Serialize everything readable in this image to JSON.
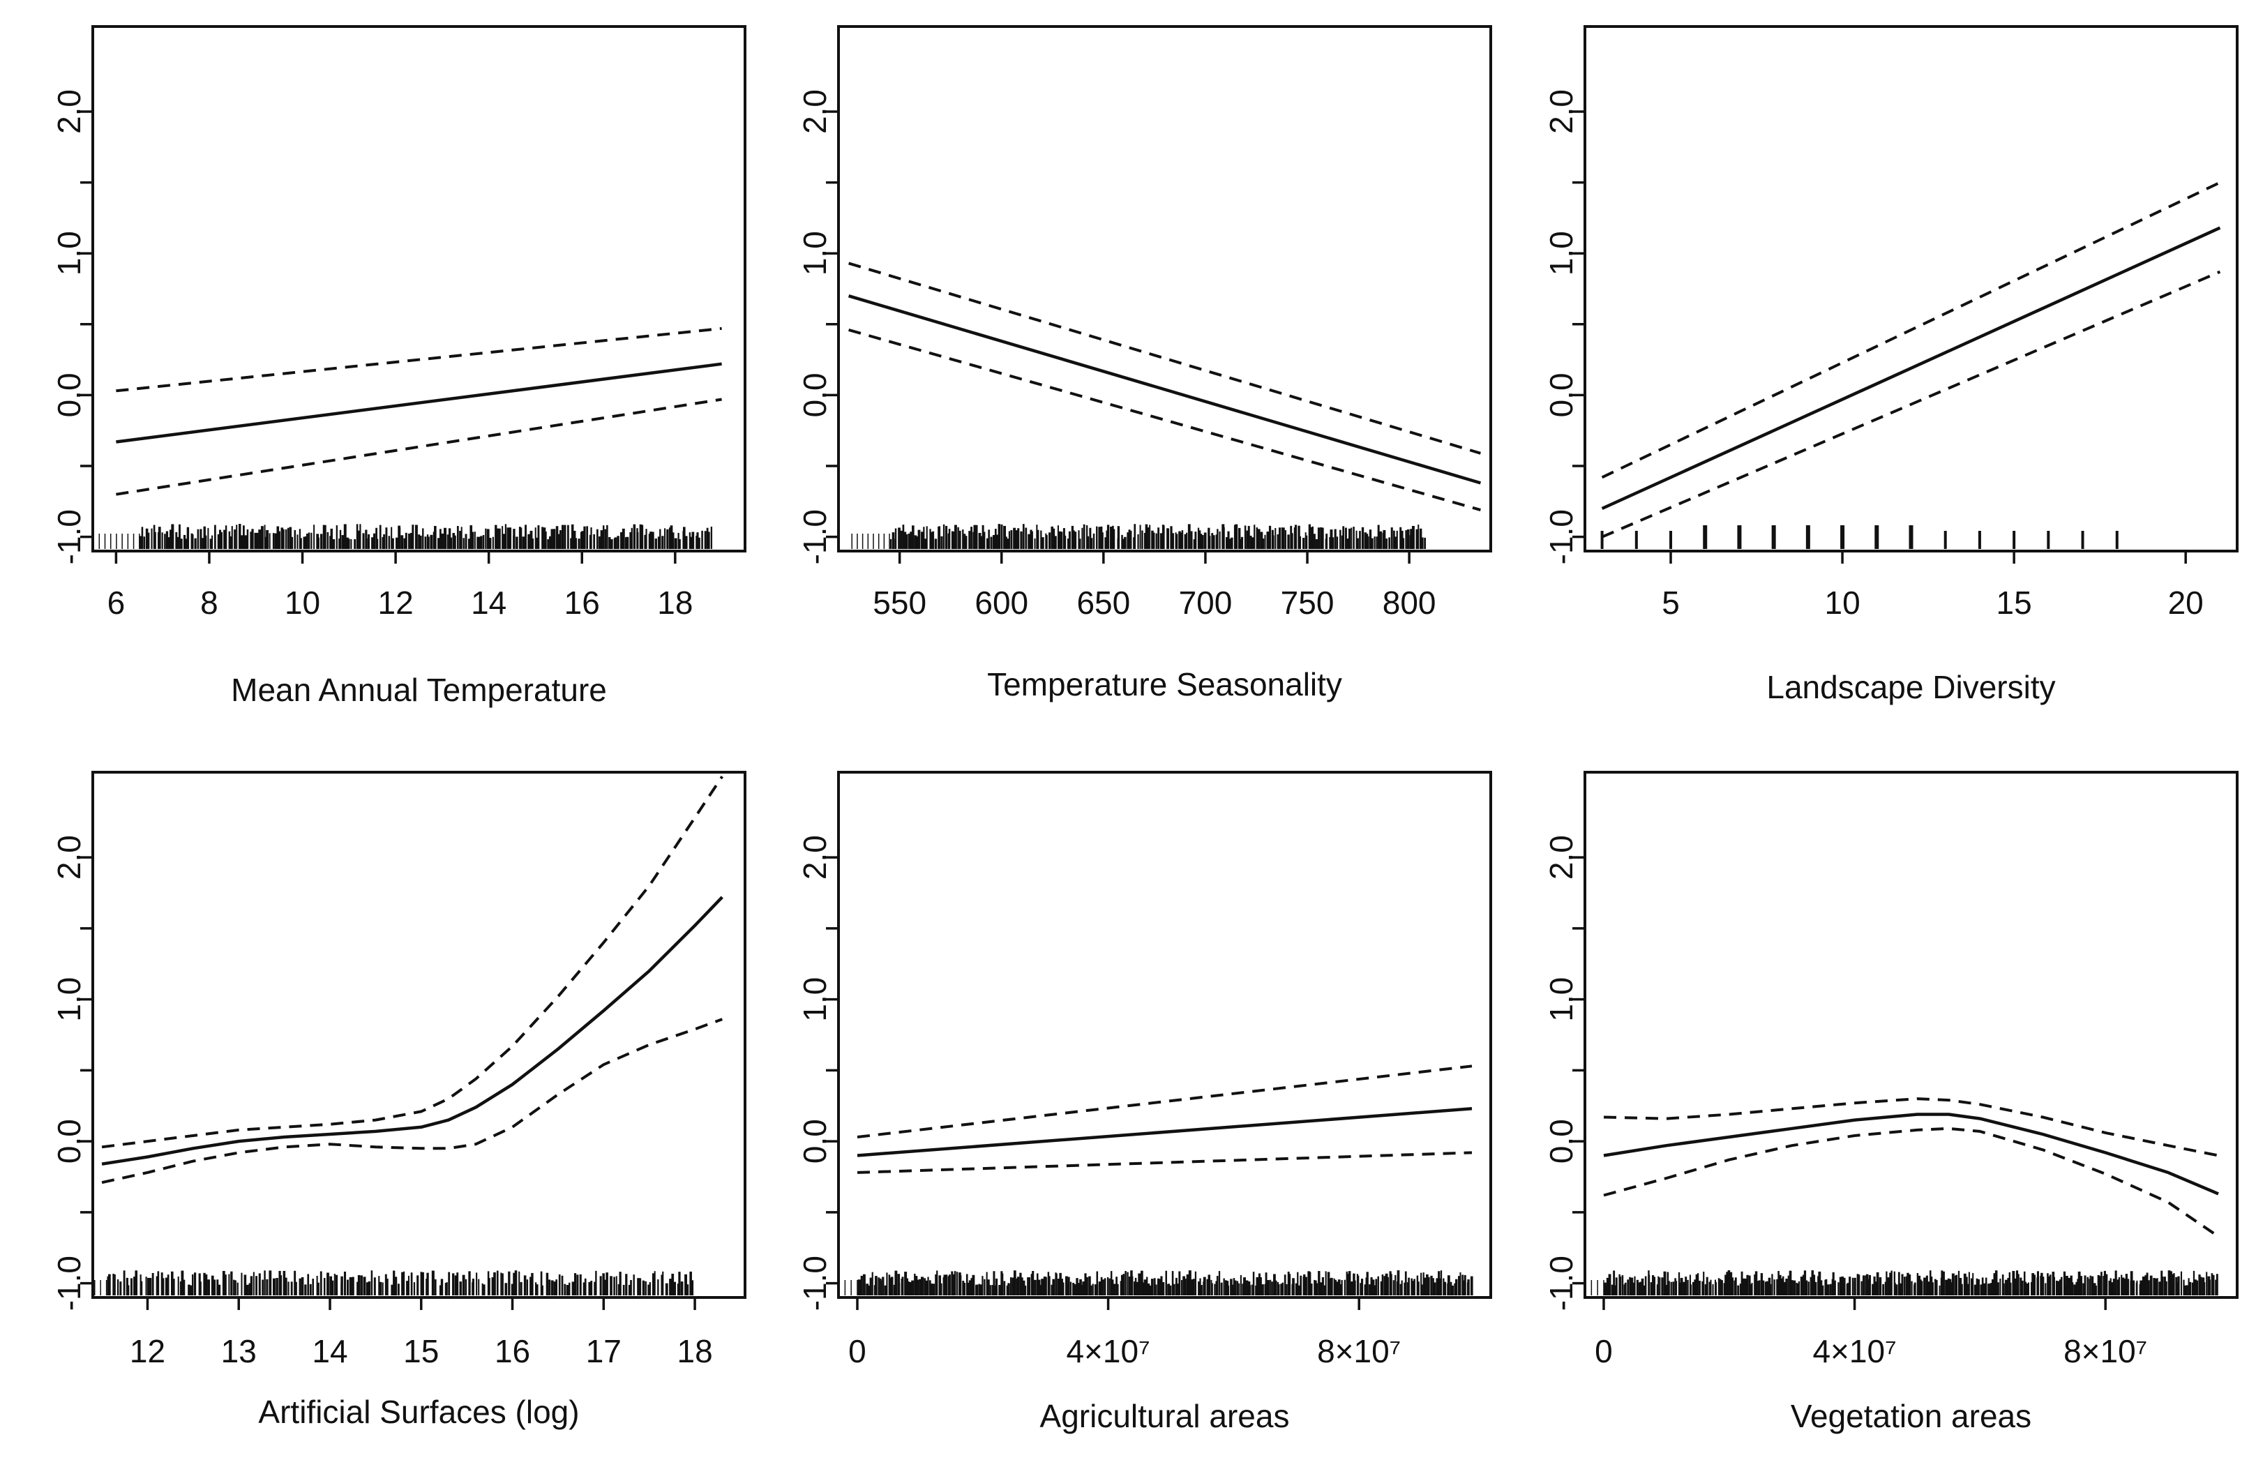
{
  "chart_data": [
    {
      "type": "line",
      "xlabel": "Mean Annual Temperature",
      "ylabel": "",
      "xlim": [
        5.5,
        19.5
      ],
      "ylim": [
        -1.1,
        2.6
      ],
      "xticks": [
        6,
        8,
        10,
        12,
        14,
        16,
        18
      ],
      "xtick_labels": [
        "6",
        "8",
        "10",
        "12",
        "14",
        "16",
        "18"
      ],
      "yticks": [
        -1.0,
        -0.5,
        0.0,
        0.5,
        1.0,
        1.5,
        2.0
      ],
      "ytick_labels": [
        "-1.0",
        "",
        "0.0",
        "",
        "1.0",
        "",
        "2.0"
      ],
      "x": [
        6.0,
        19.0
      ],
      "series": [
        {
          "name": "fit",
          "style": "solid",
          "values": [
            -0.33,
            0.22
          ]
        },
        {
          "name": "upper",
          "style": "dashed",
          "values": [
            0.03,
            0.47
          ]
        },
        {
          "name": "lower",
          "style": "dashed",
          "values": [
            -0.7,
            -0.03
          ]
        }
      ],
      "rug": {
        "type": "dense",
        "from": 6.5,
        "to": 18.8,
        "count": 260
      }
    },
    {
      "type": "line",
      "xlabel": "Temperature Seasonality",
      "ylabel": "",
      "xlim": [
        520,
        840
      ],
      "ylim": [
        -1.1,
        2.6
      ],
      "xticks": [
        550,
        600,
        650,
        700,
        750,
        800
      ],
      "xtick_labels": [
        "550",
        "600",
        "650",
        "700",
        "750",
        "800"
      ],
      "yticks": [
        -1.0,
        -0.5,
        0.0,
        0.5,
        1.0,
        1.5,
        2.0
      ],
      "ytick_labels": [
        "-1.0",
        "",
        "0.0",
        "",
        "1.0",
        "",
        "2.0"
      ],
      "x": [
        525,
        835
      ],
      "series": [
        {
          "name": "fit",
          "style": "solid",
          "values": [
            0.7,
            -0.62
          ]
        },
        {
          "name": "upper",
          "style": "dashed",
          "values": [
            0.93,
            -0.41
          ]
        },
        {
          "name": "lower",
          "style": "dashed",
          "values": [
            0.46,
            -0.81
          ]
        }
      ],
      "rug": {
        "type": "dense",
        "from": 545,
        "to": 808,
        "count": 260
      }
    },
    {
      "type": "line",
      "xlabel": "Landscape Diversity",
      "ylabel": "",
      "xlim": [
        2.5,
        21.5
      ],
      "ylim": [
        -1.1,
        2.6
      ],
      "xticks": [
        5,
        10,
        15,
        20
      ],
      "xtick_labels": [
        "5",
        "10",
        "15",
        "20"
      ],
      "yticks": [
        -1.0,
        -0.5,
        0.0,
        0.5,
        1.0,
        1.5,
        2.0
      ],
      "ytick_labels": [
        "-1.0",
        "",
        "0.0",
        "",
        "1.0",
        "",
        "2.0"
      ],
      "x": [
        3.0,
        21.0
      ],
      "series": [
        {
          "name": "fit",
          "style": "solid",
          "values": [
            -0.8,
            1.18
          ]
        },
        {
          "name": "upper",
          "style": "dashed",
          "values": [
            -0.58,
            1.5
          ]
        },
        {
          "name": "lower",
          "style": "dashed",
          "values": [
            -1.0,
            0.87
          ]
        }
      ],
      "rug": {
        "type": "discrete",
        "values": [
          3,
          4,
          5,
          6,
          7,
          8,
          9,
          10,
          11,
          12,
          13,
          14,
          15,
          16,
          17,
          18
        ]
      }
    },
    {
      "type": "line",
      "xlabel": "Artificial Surfaces (log)",
      "ylabel": "",
      "xlim": [
        11.4,
        18.55
      ],
      "ylim": [
        -1.1,
        2.6
      ],
      "xticks": [
        12,
        13,
        14,
        15,
        16,
        17,
        18
      ],
      "xtick_labels": [
        "12",
        "13",
        "14",
        "15",
        "16",
        "17",
        "18"
      ],
      "yticks": [
        -1.0,
        -0.5,
        0.0,
        0.5,
        1.0,
        1.5,
        2.0
      ],
      "ytick_labels": [
        "-1.0",
        "",
        "0.0",
        "",
        "1.0",
        "",
        "2.0"
      ],
      "x": [
        11.5,
        12.0,
        12.5,
        13.0,
        13.5,
        14.0,
        14.5,
        15.0,
        15.3,
        15.6,
        16.0,
        16.5,
        17.0,
        17.5,
        18.0,
        18.3
      ],
      "series": [
        {
          "name": "fit",
          "style": "solid",
          "values": [
            -0.16,
            -0.11,
            -0.05,
            0.0,
            0.03,
            0.05,
            0.07,
            0.1,
            0.15,
            0.24,
            0.4,
            0.65,
            0.92,
            1.2,
            1.52,
            1.72
          ]
        },
        {
          "name": "upper",
          "style": "dashed",
          "values": [
            -0.04,
            0.0,
            0.04,
            0.08,
            0.1,
            0.12,
            0.15,
            0.21,
            0.3,
            0.44,
            0.67,
            1.02,
            1.4,
            1.8,
            2.28,
            2.57
          ]
        },
        {
          "name": "lower",
          "style": "dashed",
          "values": [
            -0.29,
            -0.22,
            -0.14,
            -0.08,
            -0.04,
            -0.02,
            -0.04,
            -0.05,
            -0.05,
            -0.02,
            0.1,
            0.33,
            0.54,
            0.68,
            0.79,
            0.86
          ]
        }
      ],
      "rug": {
        "type": "dense",
        "from": 11.55,
        "to": 18.0,
        "count": 220
      }
    },
    {
      "type": "line",
      "xlabel": "Agricultural areas",
      "ylabel": "",
      "xlim": [
        -3000000,
        101000000
      ],
      "ylim": [
        -1.1,
        2.6
      ],
      "xticks": [
        0,
        40000000,
        80000000
      ],
      "xtick_labels": [
        "0",
        "4×10⁷",
        "8×10⁷"
      ],
      "yticks": [
        -1.0,
        -0.5,
        0.0,
        0.5,
        1.0,
        1.5,
        2.0
      ],
      "ytick_labels": [
        "-1.0",
        "",
        "0.0",
        "",
        "1.0",
        "",
        "2.0"
      ],
      "x": [
        0,
        98000000
      ],
      "series": [
        {
          "name": "fit",
          "style": "solid",
          "values": [
            -0.1,
            0.23
          ]
        },
        {
          "name": "upper",
          "style": "dashed",
          "values": [
            0.03,
            0.53
          ]
        },
        {
          "name": "lower",
          "style": "dashed",
          "values": [
            -0.22,
            -0.08
          ]
        }
      ],
      "rug": {
        "type": "dense",
        "from": 0,
        "to": 98000000,
        "count": 340
      }
    },
    {
      "type": "line",
      "xlabel": "Vegetation areas",
      "ylabel": "",
      "xlim": [
        -3000000,
        101000000
      ],
      "ylim": [
        -1.1,
        2.6
      ],
      "xticks": [
        0,
        40000000,
        80000000
      ],
      "xtick_labels": [
        "0",
        "4×10⁷",
        "8×10⁷"
      ],
      "yticks": [
        -1.0,
        -0.5,
        0.0,
        0.5,
        1.0,
        1.5,
        2.0
      ],
      "ytick_labels": [
        "-1.0",
        "",
        "0.0",
        "",
        "1.0",
        "",
        "2.0"
      ],
      "x": [
        0,
        10000000,
        20000000,
        30000000,
        40000000,
        50000000,
        55000000,
        60000000,
        70000000,
        80000000,
        90000000,
        98000000
      ],
      "series": [
        {
          "name": "fit",
          "style": "solid",
          "values": [
            -0.1,
            -0.03,
            0.03,
            0.09,
            0.15,
            0.19,
            0.19,
            0.16,
            0.05,
            -0.08,
            -0.22,
            -0.37
          ]
        },
        {
          "name": "upper",
          "style": "dashed",
          "values": [
            0.17,
            0.16,
            0.19,
            0.23,
            0.27,
            0.3,
            0.29,
            0.26,
            0.17,
            0.06,
            -0.03,
            -0.1
          ]
        },
        {
          "name": "lower",
          "style": "dashed",
          "values": [
            -0.38,
            -0.26,
            -0.13,
            -0.03,
            0.04,
            0.08,
            0.09,
            0.07,
            -0.06,
            -0.23,
            -0.43,
            -0.67
          ]
        }
      ],
      "rug": {
        "type": "dense",
        "from": 0,
        "to": 98000000,
        "count": 340
      }
    }
  ]
}
